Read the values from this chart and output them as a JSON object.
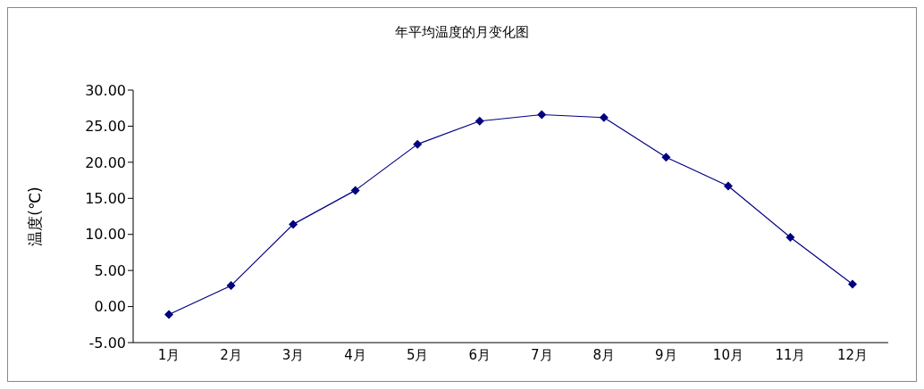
{
  "chart_data": {
    "type": "line",
    "title": "年平均温度的月变化图",
    "ylabel": "温度(℃)",
    "categories": [
      "1月",
      "2月",
      "3月",
      "4月",
      "5月",
      "6月",
      "7月",
      "8月",
      "9月",
      "10月",
      "11月",
      "12月"
    ],
    "series": [
      {
        "color": "#000080",
        "values": [
          -1.1,
          2.9,
          11.4,
          16.1,
          22.5,
          25.7,
          26.6,
          26.2,
          20.7,
          16.7,
          9.6,
          3.1
        ]
      }
    ],
    "ylim": [
      -5,
      30
    ],
    "yticks": [
      {
        "value": -5,
        "label": "-5.00"
      },
      {
        "value": 0,
        "label": "0.00"
      },
      {
        "value": 5,
        "label": "5.00"
      },
      {
        "value": 10,
        "label": "10.00"
      },
      {
        "value": 15,
        "label": "15.00"
      },
      {
        "value": 20,
        "label": "20.00"
      },
      {
        "value": 25,
        "label": "25.00"
      },
      {
        "value": 30,
        "label": "30.00"
      }
    ],
    "grid": false,
    "legend": false,
    "marker": "diamond",
    "line_style": "solid"
  }
}
